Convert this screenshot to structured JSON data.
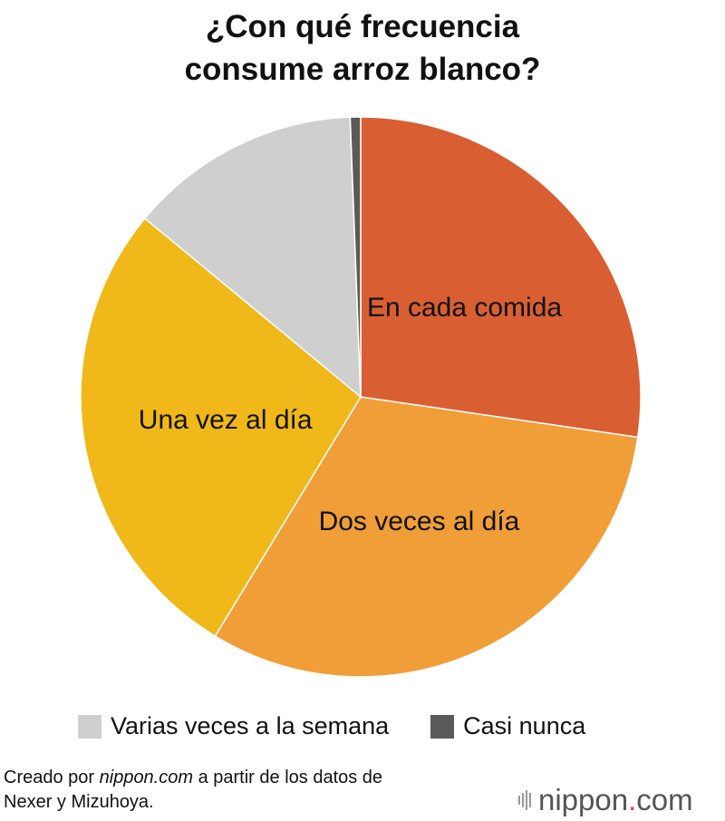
{
  "chart_data": {
    "type": "pie",
    "title_lines": [
      "¿Con qué frecuencia",
      "consume arroz blanco?"
    ],
    "slices": [
      {
        "label": "En cada comida",
        "value": 27.3,
        "color": "#d95f32",
        "show_label": true
      },
      {
        "label": "Dos veces al día",
        "value": 31.4,
        "color": "#f09e38",
        "show_label": true
      },
      {
        "label": "Una vez al día",
        "value": 27.3,
        "color": "#f0b818",
        "show_label": true
      },
      {
        "label": "Varias veces a la semana",
        "value": 13.4,
        "color": "#cfcfcf",
        "show_label": false
      },
      {
        "label": "Casi nunca",
        "value": 0.6,
        "color": "#5a5a5a",
        "show_label": false
      }
    ],
    "legend": [
      {
        "label": "Varias veces a la semana",
        "color": "#cfcfcf"
      },
      {
        "label": "Casi nunca",
        "color": "#5a5a5a"
      }
    ],
    "legend_position": "bottom"
  },
  "credit": {
    "prefix": "Creado por ",
    "site": "nippon.com",
    "suffix": " a partir de los datos de",
    "line2": "Nexer y Mizuhoya."
  },
  "logo": {
    "name": "nippon",
    "dot": ".",
    "tld": "com"
  }
}
